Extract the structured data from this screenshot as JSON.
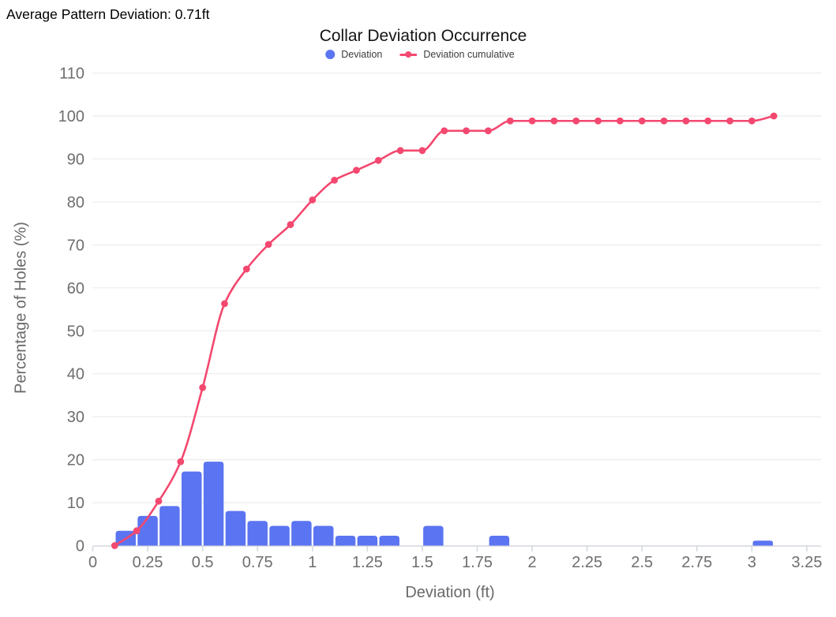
{
  "annotation": {
    "text": "Average Pattern Deviation: 0.71ft"
  },
  "colors": {
    "bar": "#5b74f1",
    "line": "#f3486f",
    "grid": "#ebebeb",
    "axis_line": "#d3d7dd",
    "tick_text": "#6e6e6e"
  },
  "chart_data": {
    "type": "bar",
    "title": "Collar Deviation Occurrence",
    "xlabel": "Deviation (ft)",
    "ylabel": "Percentage of Holes (%)",
    "xlim": [
      0,
      3.25
    ],
    "ylim": [
      0,
      110
    ],
    "x_ticks": [
      0,
      0.25,
      0.5,
      0.75,
      1,
      1.25,
      1.5,
      1.75,
      2,
      2.25,
      2.5,
      2.75,
      3,
      3.25
    ],
    "y_ticks": [
      0,
      10,
      20,
      30,
      40,
      50,
      60,
      70,
      80,
      90,
      100,
      110
    ],
    "grid": "horizontal gridlines only",
    "legend_position": "top-center",
    "bin_width": 0.1,
    "series": [
      {
        "name": "Deviation",
        "type": "bar",
        "color": "#5b74f1",
        "x": [
          0.15,
          0.25,
          0.35,
          0.45,
          0.55,
          0.65,
          0.75,
          0.85,
          0.95,
          1.05,
          1.15,
          1.25,
          1.35,
          1.55,
          1.85,
          3.05
        ],
        "values": [
          3.45,
          6.9,
          9.2,
          17.24,
          19.54,
          8.05,
          5.75,
          4.6,
          5.75,
          4.6,
          2.3,
          2.3,
          2.3,
          4.6,
          2.3,
          1.15
        ]
      },
      {
        "name": "Deviation cumulative",
        "type": "line",
        "color": "#f3486f",
        "x": [
          0.1,
          0.2,
          0.3,
          0.4,
          0.5,
          0.6,
          0.7,
          0.8,
          0.9,
          1.0,
          1.1,
          1.2,
          1.3,
          1.4,
          1.5,
          1.6,
          1.7,
          1.8,
          1.9,
          2.0,
          2.1,
          2.2,
          2.3,
          2.4,
          2.5,
          2.6,
          2.7,
          2.8,
          2.9,
          3.0,
          3.1
        ],
        "values": [
          0,
          3.45,
          10.34,
          19.54,
          36.78,
          56.32,
          64.37,
          70.11,
          74.71,
          80.46,
          85.06,
          87.36,
          89.66,
          91.95,
          91.95,
          96.55,
          96.55,
          96.55,
          98.85,
          98.85,
          98.85,
          98.85,
          98.85,
          98.85,
          98.85,
          98.85,
          98.85,
          98.85,
          98.85,
          98.85,
          100
        ]
      }
    ]
  }
}
